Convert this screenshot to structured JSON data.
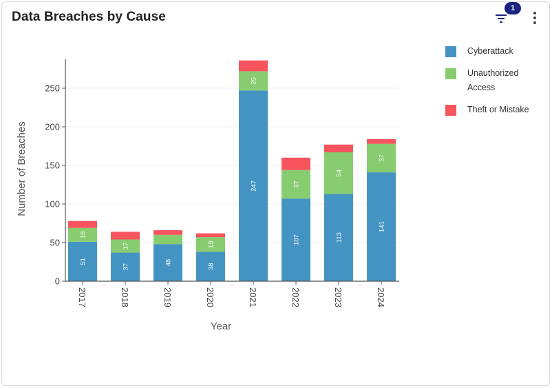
{
  "header": {
    "title": "Data Breaches by Cause",
    "filter_count": "1"
  },
  "icons": {
    "filter": "filter-icon",
    "more": "more-vertical-icon"
  },
  "legend": [
    {
      "label": "Cyberattack",
      "color": "#4393c3"
    },
    {
      "label": "Unauthorized Access",
      "color": "#88cc70"
    },
    {
      "label": "Theft or Mistake",
      "color": "#f7545d"
    }
  ],
  "chart_data": {
    "type": "bar",
    "stacked": true,
    "categories": [
      "2017",
      "2018",
      "2019",
      "2020",
      "2021",
      "2022",
      "2023",
      "2024"
    ],
    "series": [
      {
        "name": "Cyberattack",
        "color": "#4393c3",
        "values": [
          51,
          37,
          48,
          38,
          247,
          107,
          113,
          141
        ]
      },
      {
        "name": "Unauthorized Access",
        "color": "#88cc70",
        "values": [
          18,
          17,
          12,
          19,
          25,
          37,
          54,
          37
        ]
      },
      {
        "name": "Theft or Mistake",
        "color": "#f7545d",
        "values": [
          9,
          10,
          6,
          5,
          14,
          16,
          10,
          6
        ]
      }
    ],
    "labeled_series": [
      "Cyberattack",
      "Unauthorized Access"
    ],
    "label_threshold": 15,
    "xlabel": "Year",
    "ylabel": "Number of Breaches",
    "ylim": [
      0,
      285
    ],
    "yticks": [
      0,
      50,
      100,
      150,
      200,
      250
    ],
    "grid": true,
    "legend_position": "right"
  }
}
